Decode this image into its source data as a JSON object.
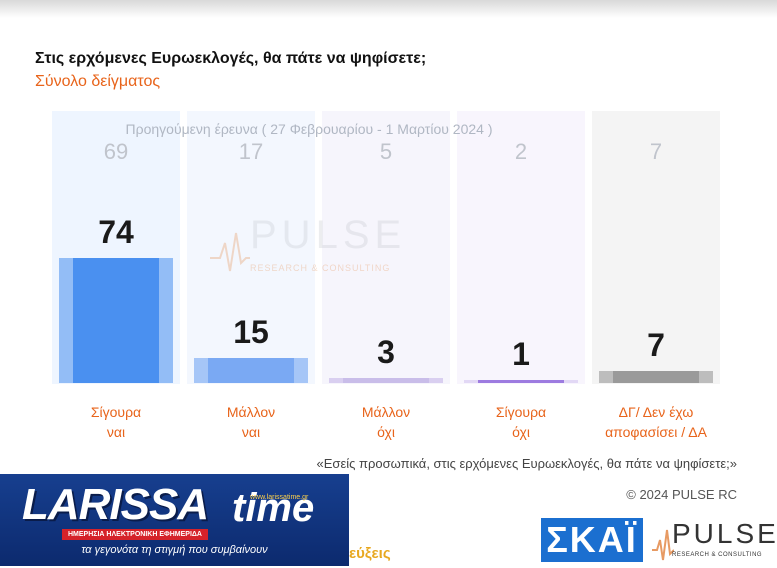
{
  "title": "Στις ερχόμενες Ευρωεκλογές, θα πάτε να ψηφίσετε;",
  "subtitle": "Σύνολο δείγματος",
  "previous_caption": "Προηγούμενη έρευνα  ( 27 Φεβρουαρίου - 1 Μαρτίου 2024 )",
  "question_note": "«Εσείς προσωπικά, στις ερχόμενες Ευρωεκλογές, θα πάτε να ψηφίσετε;»",
  "copyright": "© 2024 PULSE RC",
  "watermark": {
    "name": "PULSE",
    "sub": "RESEARCH & CONSULTING"
  },
  "larissa": {
    "word": "LARISSA",
    "time": "time",
    "url": "www.larissatime.gr",
    "strip": "ΗΜΕΡΗΣΙΑ ΗΛΕΚΤΡΟΝΙΚΗ ΕΦΗΜΕΡΙΔΑ",
    "tagline": "τα γεγονότα τη στιγμή που συμβαίνουν"
  },
  "partial_text": "εύξεις",
  "skai_logo": "ΣΚΑΪ",
  "pulse_logo": {
    "name": "PULSE",
    "sub": "RESEARCH & CONSULTING"
  },
  "chart_data": {
    "type": "bar",
    "categories": [
      [
        "Σίγουρα",
        "ναι"
      ],
      [
        "Μάλλον",
        "ναι"
      ],
      [
        "Μάλλον",
        "όχι"
      ],
      [
        "Σίγουρα",
        "όχι"
      ],
      [
        "ΔΓ/ Δεν έχω",
        "αποφασίσει / ΔΑ"
      ]
    ],
    "series": [
      {
        "name": "current",
        "values": [
          74,
          15,
          3,
          1,
          7
        ]
      },
      {
        "name": "previous",
        "values": [
          69,
          17,
          5,
          2,
          7
        ]
      }
    ],
    "ylim": [
      0,
      100
    ],
    "colors": {
      "bar_outer": [
        "#93bdf6",
        "#a6c6f7",
        "#d9cff0",
        "#e2d8f5",
        "#bdbdbd"
      ],
      "bar_inner": [
        "#4a90f0",
        "#7aa9f3",
        "#c9bde9",
        "#9d7be0",
        "#9a9a9a"
      ],
      "column_bg": [
        "#eef5ff",
        "#f3f7fe",
        "#f6f5fc",
        "#f8f5fd",
        "#f4f4f4"
      ]
    }
  }
}
